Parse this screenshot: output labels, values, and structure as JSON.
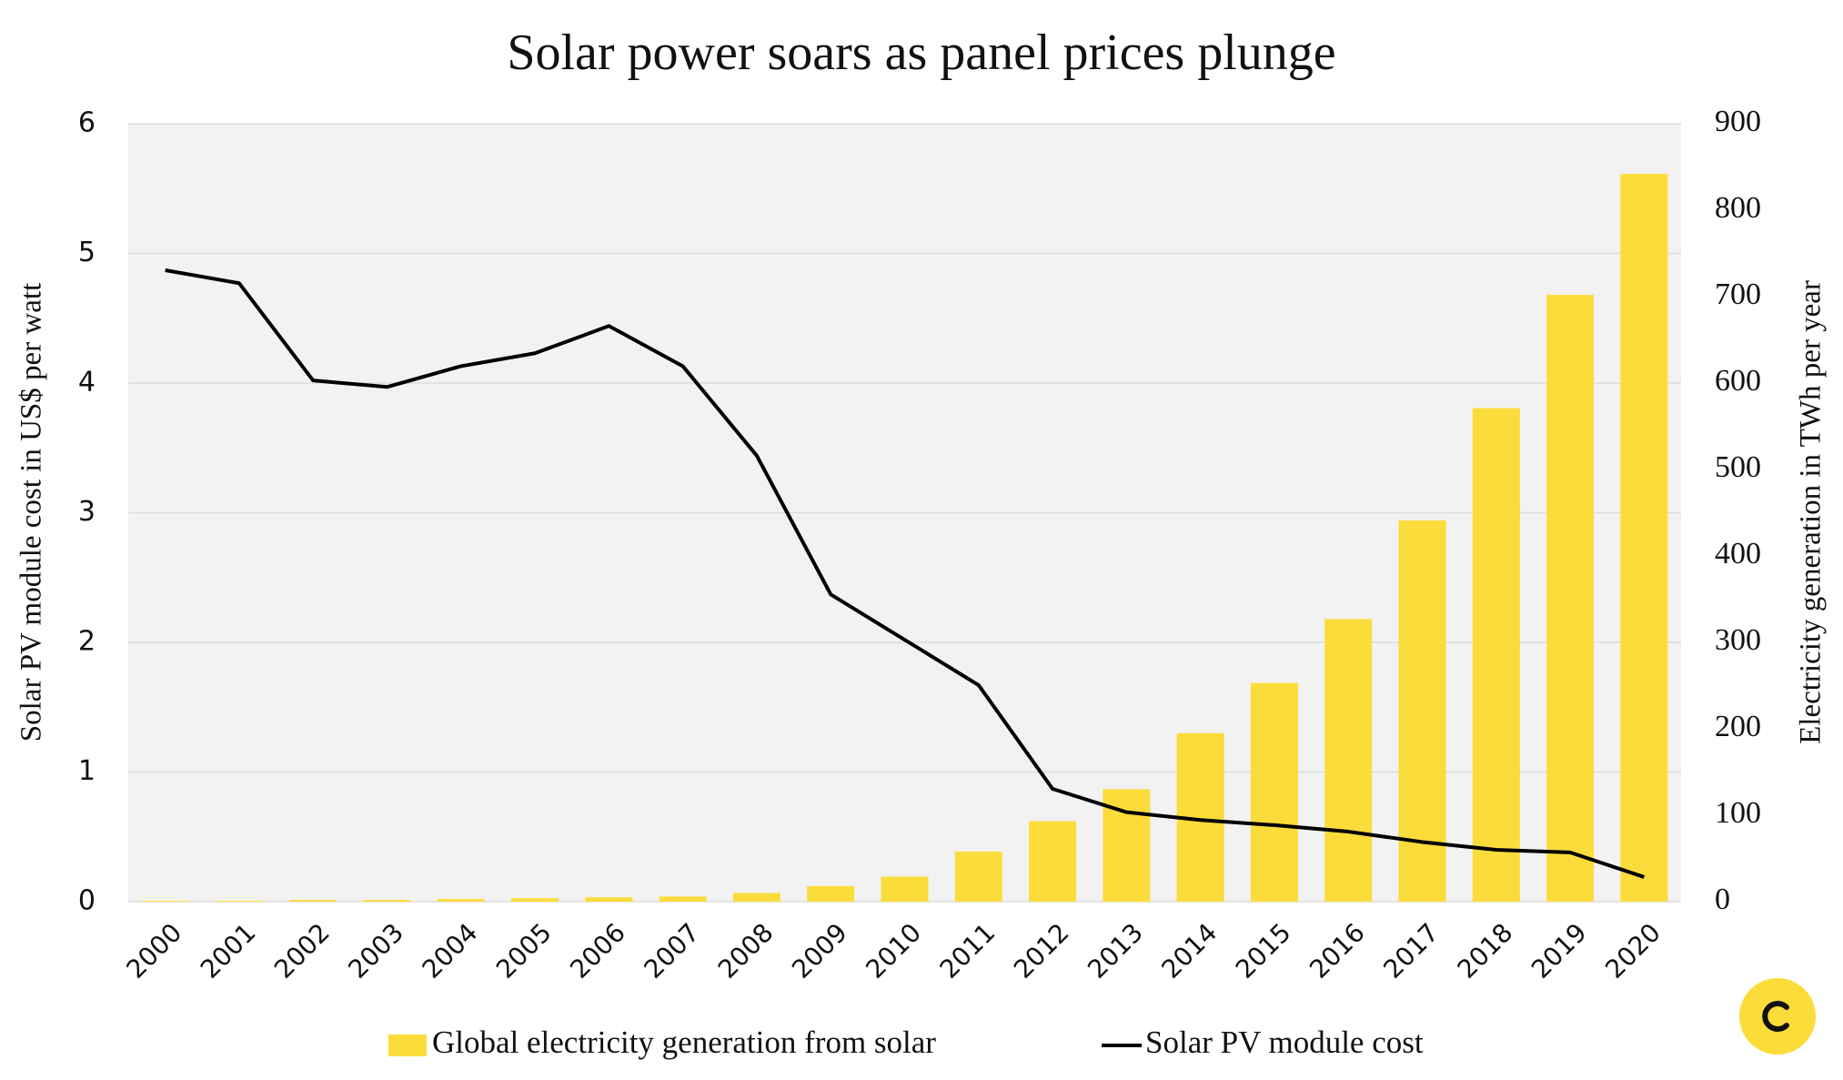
{
  "chart_data": {
    "type": "bar-line",
    "title": "Solar power soars as panel prices plunge",
    "ylabel": "Solar PV module cost in US$ per watt",
    "y2label": "Electricity generation in TWh per year",
    "categories": [
      "2000",
      "2001",
      "2002",
      "2003",
      "2004",
      "2005",
      "2006",
      "2007",
      "2008",
      "2009",
      "2010",
      "2011",
      "2012",
      "2013",
      "2014",
      "2015",
      "2016",
      "2017",
      "2018",
      "2019",
      "2020"
    ],
    "series": [
      {
        "name": "Global electricity generation from solar",
        "type": "bar",
        "color": "#fcdc3b",
        "axis": "y2",
        "values": [
          1,
          1,
          2,
          2,
          3,
          4,
          5,
          6,
          10,
          18,
          29,
          58,
          93,
          130,
          195,
          253,
          327,
          441,
          571,
          702,
          842
        ]
      },
      {
        "name": "Solar PV module cost",
        "type": "line",
        "color": "#000000",
        "axis": "y",
        "values": [
          4.87,
          4.77,
          4.02,
          3.97,
          4.13,
          4.23,
          4.44,
          4.13,
          3.44,
          2.37,
          2.02,
          1.67,
          0.87,
          0.69,
          0.63,
          0.59,
          0.54,
          0.46,
          0.4,
          0.38,
          0.19
        ]
      }
    ],
    "ylim": [
      0,
      6
    ],
    "yticks": [
      0,
      1,
      2,
      3,
      4,
      5,
      6
    ],
    "y2lim": [
      0,
      900
    ],
    "y2ticks": [
      0,
      100,
      200,
      300,
      400,
      500,
      600,
      700,
      800,
      900
    ],
    "grid": true,
    "legend": "bottom"
  }
}
